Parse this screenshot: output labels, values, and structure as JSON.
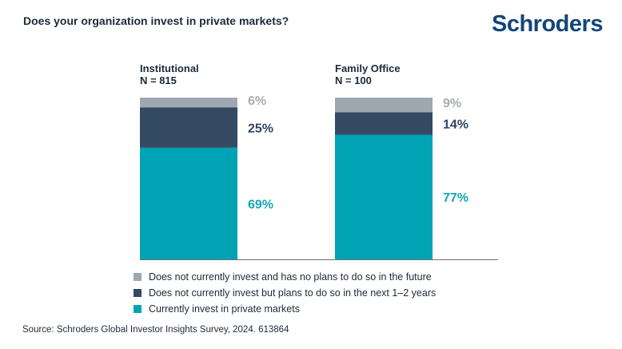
{
  "title": "Does your organization invest in private markets?",
  "logo": "Schroders",
  "source": "Source: Schroders Global Investor Insights Survey, 2024. 613864",
  "colors": {
    "no_plans": "#9fa8b1",
    "plans": "#344a63",
    "invest": "#00a3b4",
    "no_plans_label": "#a7adb4",
    "plans_label": "#2f4560",
    "invest_label": "#14a5b5"
  },
  "chart_data": {
    "type": "bar",
    "stacked": true,
    "categories": [
      {
        "name": "Institutional",
        "n": "N = 815"
      },
      {
        "name": "Family Office",
        "n": "N = 100"
      }
    ],
    "series": [
      {
        "name": "Currently invest in private markets",
        "key": "invest",
        "values": [
          69,
          77
        ],
        "labels": [
          "69%",
          "77%"
        ]
      },
      {
        "name": "Does not currently invest but plans to do so in the next 1–2 years",
        "key": "plans",
        "values": [
          25,
          14
        ],
        "labels": [
          "25%",
          "14%"
        ]
      },
      {
        "name": "Does not currently invest and has no plans to do so in the future",
        "key": "no_plans",
        "values": [
          6,
          9
        ],
        "labels": [
          "6%",
          "9%"
        ]
      }
    ],
    "ylim": [
      0,
      100
    ],
    "grid": false,
    "legend_position": "bottom",
    "legend_order": [
      "no_plans",
      "plans",
      "invest"
    ]
  }
}
